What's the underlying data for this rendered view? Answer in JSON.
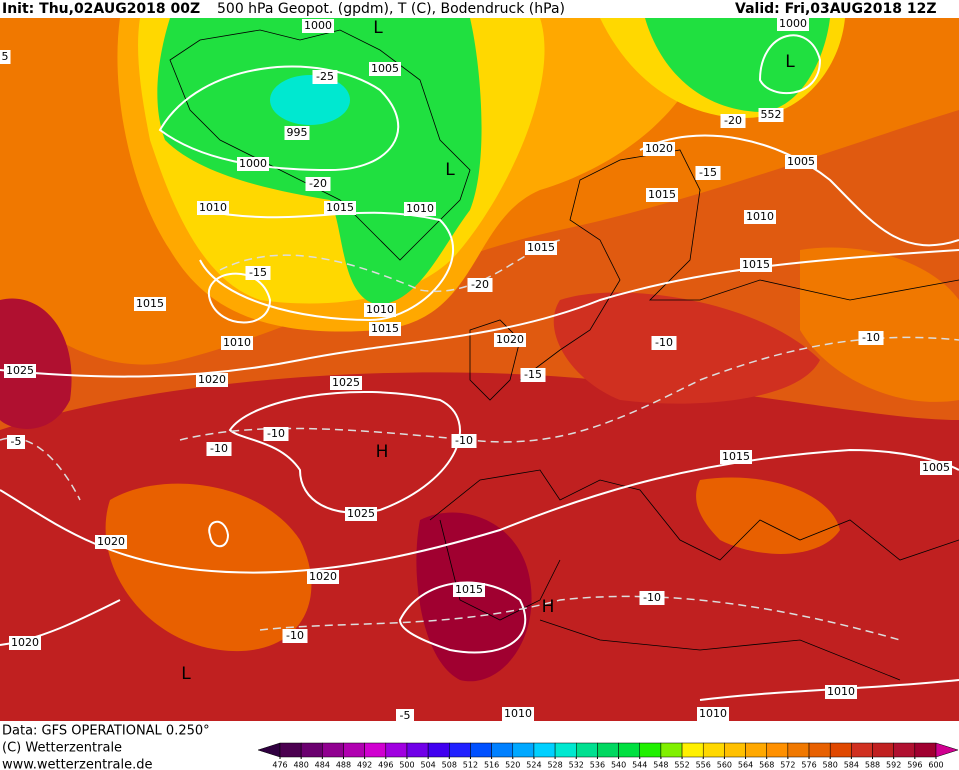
{
  "header": {
    "init": "Init: Thu,02AUG2018 00Z",
    "title": "500 hPa Geopot. (gpdm), T (C), Bodendruck (hPa)",
    "valid": "Valid: Fri,03AUG2018 12Z"
  },
  "footer": [
    "Data: GFS OPERATIONAL 0.250°",
    "(C) Wetterzentrale",
    "www.wetterzentrale.de"
  ],
  "contour_labels": [
    "1000",
    "-25",
    "1005",
    "995",
    "1000",
    "-20",
    "1010",
    "1015",
    "1010",
    "-15",
    "1015",
    "1010",
    "1015",
    "1010",
    "-20",
    "1015",
    "1020",
    "1015",
    "-15",
    "-20",
    "552",
    "1000",
    "1005",
    "1010",
    "1015",
    "1020",
    "-15",
    "-10",
    "-10",
    "1025",
    "1020",
    "1025",
    "-10",
    "-10",
    "-10",
    "-5",
    "1015",
    "1005",
    "1025",
    "1020",
    "1020",
    "1015",
    "-10",
    "-10",
    "1020",
    "1010",
    "1010",
    "1010",
    "-5",
    "5"
  ],
  "pressure_centers": [
    "L",
    "L",
    "L",
    "H",
    "H",
    "L"
  ],
  "colorbar": {
    "ticks": [
      476,
      480,
      484,
      488,
      492,
      496,
      500,
      504,
      508,
      512,
      516,
      520,
      524,
      528,
      532,
      536,
      540,
      544,
      548,
      552,
      556,
      560,
      564,
      568,
      572,
      576,
      580,
      584,
      588,
      592,
      596,
      600
    ],
    "colors": [
      "#300040",
      "#4b0050",
      "#6a006f",
      "#900090",
      "#b000b0",
      "#d000d0",
      "#a000e0",
      "#7000e8",
      "#4000f0",
      "#2020ff",
      "#0050ff",
      "#0080ff",
      "#00a8ff",
      "#00d0ff",
      "#00e8d0",
      "#00e090",
      "#00d860",
      "#00e040",
      "#20f000",
      "#80f000",
      "#fff000",
      "#ffd800",
      "#ffc000",
      "#ffa800",
      "#ff9000",
      "#f07800",
      "#e86000",
      "#e04800",
      "#d03020",
      "#c02020",
      "#b01030",
      "#a00030",
      "#d00090"
    ]
  }
}
